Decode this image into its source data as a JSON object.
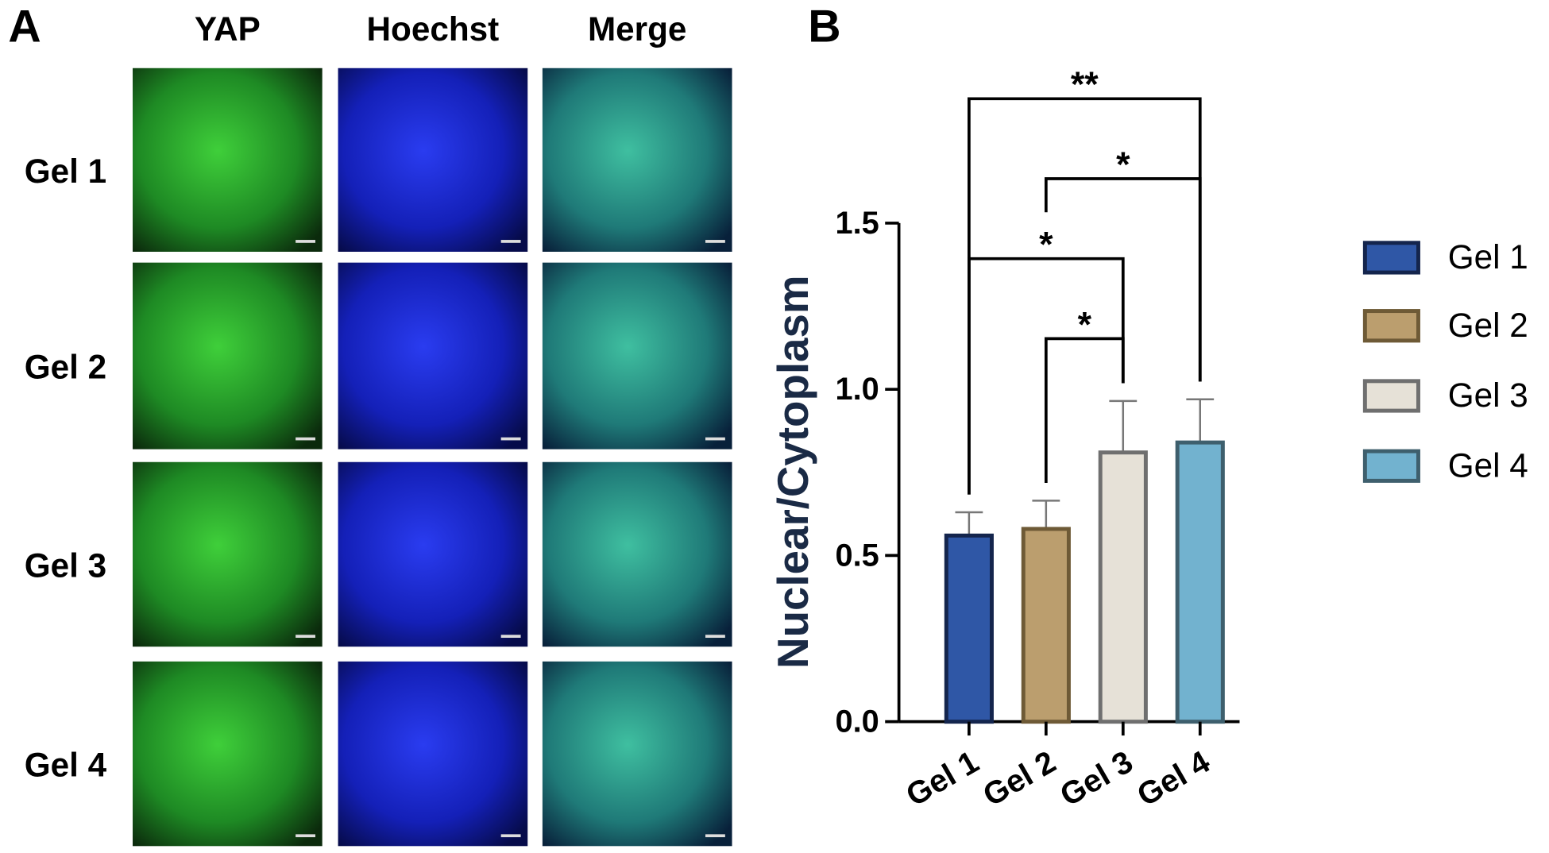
{
  "panel_a": {
    "letter": "A",
    "columns": [
      "YAP",
      "Hoechst",
      "Merge"
    ],
    "rows": [
      "Gel 1",
      "Gel 2",
      "Gel 3",
      "Gel 4"
    ]
  },
  "chart_data": {
    "type": "bar",
    "letter": "B",
    "y_label": "Nuclear/Cytoplasm",
    "categories": [
      "Gel 1",
      "Gel 2",
      "Gel 3",
      "Gel 4"
    ],
    "values": [
      0.56,
      0.58,
      0.81,
      0.84
    ],
    "errors": [
      0.07,
      0.085,
      0.155,
      0.13
    ],
    "colors": [
      "#2f57a6",
      "#bb9e6e",
      "#e6e1d7",
      "#72b2cf"
    ],
    "edge_colors": [
      "#14254d",
      "#6e5a36",
      "#6f6f6f",
      "#3e5f6d"
    ],
    "ylim": [
      0,
      1.5
    ],
    "yticks": [
      {
        "value": 0,
        "label": "0.0"
      },
      0.5,
      {
        "value": 1,
        "label": "1.0"
      },
      1.5
    ],
    "legend": "right",
    "comparisons": [
      {
        "groups": [
          "Gel 1",
          "Gel 4"
        ],
        "label": "**"
      },
      {
        "groups": [
          "Gel 2",
          "Gel 4"
        ],
        "label": "*"
      },
      {
        "groups": [
          "Gel 1",
          "Gel 3"
        ],
        "label": "*"
      },
      {
        "groups": [
          "Gel 2",
          "Gel 3"
        ],
        "label": "*"
      }
    ]
  }
}
